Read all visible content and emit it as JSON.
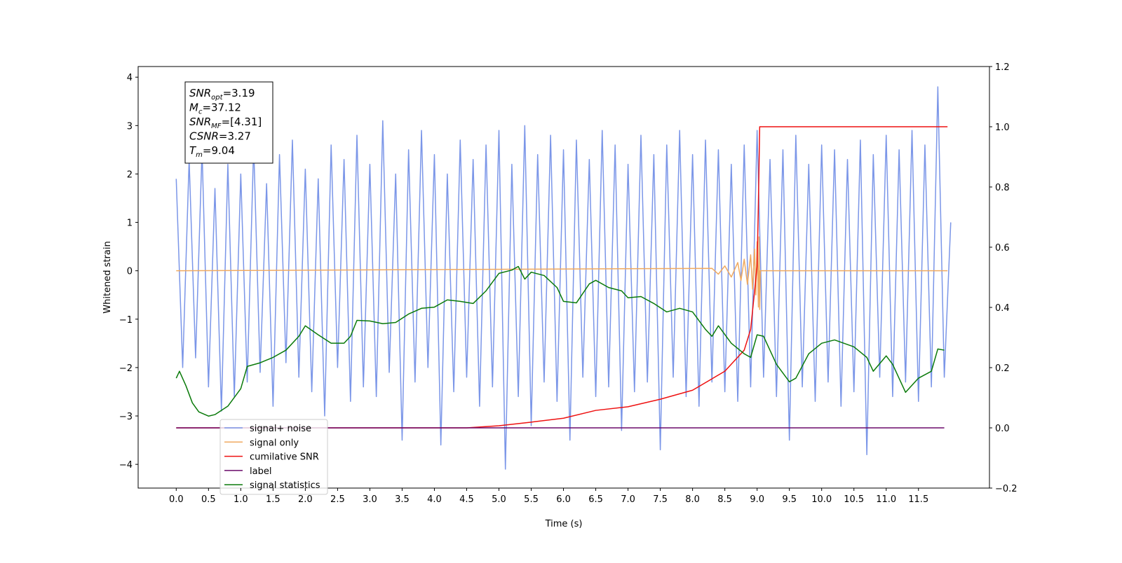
{
  "chart_data": {
    "type": "line",
    "xlabel": "Time (s)",
    "ylabel": "Whitened strain",
    "xlim": [
      -0.59,
      12.6
    ],
    "ylim": [
      -4.49,
      4.22
    ],
    "y2lim": [
      -0.2,
      1.2
    ],
    "xticks": [
      {
        "value": 0,
        "label": "0.0"
      },
      0.5,
      {
        "value": 1,
        "label": "1.0"
      },
      1.5,
      {
        "value": 2,
        "label": "2.0"
      },
      2.5,
      {
        "value": 3,
        "label": "3.0"
      },
      3.5,
      {
        "value": 4,
        "label": "4.0"
      },
      4.5,
      {
        "value": 5,
        "label": "5.0"
      },
      5.5,
      {
        "value": 6,
        "label": "6.0"
      },
      6.5,
      {
        "value": 7,
        "label": "7.0"
      },
      7.5,
      {
        "value": 8,
        "label": "8.0"
      },
      8.5,
      {
        "value": 9,
        "label": "9.0"
      },
      9.5,
      {
        "value": 10,
        "label": "10.0"
      },
      10.5,
      {
        "value": 11,
        "label": "11.0"
      },
      11.5
    ],
    "yticks": [
      {
        "value": -4,
        "label": "−4"
      },
      {
        "value": -3,
        "label": "−3"
      },
      {
        "value": -2,
        "label": "−2"
      },
      {
        "value": -1,
        "label": "−1"
      },
      0,
      1,
      2,
      3,
      4
    ],
    "y2ticks": [
      {
        "value": -0.2,
        "label": "−0.2"
      },
      {
        "value": 0,
        "label": "0.0"
      },
      0.2,
      0.4,
      0.6,
      0.8,
      {
        "value": 1,
        "label": "1.0"
      },
      1.2
    ],
    "legend": "lower left",
    "annotation_box": [
      {
        "var": "SNR",
        "sub": "opt",
        "text": "=3.19"
      },
      {
        "var": "M",
        "sub": "c",
        "text": "=37.12"
      },
      {
        "var": "SNR",
        "sub": "MF",
        "text": "=[4.31]"
      },
      {
        "var": "CSNR",
        "sub": "",
        "text": "=3.27"
      },
      {
        "var": "T",
        "sub": "m",
        "text": "=9.04"
      }
    ],
    "series": [
      {
        "name": "signal+ noise",
        "color": "#7b96e8",
        "axis": "y",
        "x": [
          0,
          0.1,
          0.2,
          0.3,
          0.4,
          0.5,
          0.6,
          0.7,
          0.8,
          0.9,
          1,
          1.1,
          1.2,
          1.3,
          1.4,
          1.5,
          1.6,
          1.7,
          1.8,
          1.9,
          2,
          2.1,
          2.2,
          2.3,
          2.4,
          2.5,
          2.6,
          2.7,
          2.8,
          2.9,
          3,
          3.1,
          3.2,
          3.3,
          3.4,
          3.5,
          3.6,
          3.7,
          3.8,
          3.9,
          4,
          4.1,
          4.2,
          4.3,
          4.4,
          4.5,
          4.6,
          4.7,
          4.8,
          4.9,
          5,
          5.1,
          5.2,
          5.3,
          5.4,
          5.5,
          5.6,
          5.7,
          5.8,
          5.9,
          6,
          6.1,
          6.2,
          6.3,
          6.4,
          6.5,
          6.6,
          6.7,
          6.8,
          6.9,
          7,
          7.1,
          7.2,
          7.3,
          7.4,
          7.5,
          7.6,
          7.7,
          7.8,
          7.9,
          8,
          8.1,
          8.2,
          8.3,
          8.4,
          8.5,
          8.6,
          8.7,
          8.8,
          8.9,
          9,
          9.1,
          9.2,
          9.3,
          9.4,
          9.5,
          9.6,
          9.7,
          9.8,
          9.9,
          10,
          10.1,
          10.2,
          10.3,
          10.4,
          10.5,
          10.6,
          10.7,
          10.8,
          10.9,
          11,
          11.1,
          11.2,
          11.3,
          11.4,
          11.5,
          11.6,
          11.7,
          11.8,
          11.9,
          12
        ],
        "values": [
          1.9,
          -2.0,
          2.3,
          -1.8,
          2.5,
          -2.4,
          1.7,
          -2.9,
          2.2,
          -2.6,
          2.0,
          -2.3,
          2.6,
          -2.1,
          1.8,
          -2.8,
          2.4,
          -1.9,
          2.7,
          -2.2,
          2.1,
          -2.5,
          1.9,
          -3.0,
          2.6,
          -2.0,
          2.3,
          -2.7,
          2.8,
          -2.4,
          2.2,
          -2.6,
          3.1,
          -2.1,
          2.0,
          -3.5,
          2.5,
          -2.3,
          2.9,
          -2.0,
          2.4,
          -3.6,
          2.0,
          -2.5,
          2.7,
          -2.2,
          2.3,
          -2.8,
          2.6,
          -2.4,
          2.9,
          -4.1,
          2.2,
          -2.6,
          3.0,
          -3.2,
          2.4,
          -2.3,
          2.8,
          -2.7,
          2.5,
          -3.5,
          2.7,
          -2.2,
          2.3,
          -2.6,
          2.9,
          -2.4,
          2.6,
          -3.3,
          2.2,
          -2.5,
          2.8,
          -2.3,
          2.4,
          -3.7,
          2.6,
          -2.2,
          2.9,
          -2.6,
          2.4,
          -2.8,
          2.7,
          -2.3,
          2.5,
          -2.5,
          2.2,
          -2.7,
          2.6,
          -2.4,
          2.9,
          -2.2,
          2.3,
          -2.6,
          2.5,
          -3.5,
          2.8,
          -2.4,
          2.2,
          -2.7,
          2.6,
          -2.3,
          2.5,
          -2.8,
          2.3,
          -2.5,
          2.7,
          -3.8,
          2.4,
          -2.2,
          2.8,
          -2.6,
          2.5,
          -2.3,
          2.9,
          -2.7,
          2.6,
          -2.4,
          3.8,
          -2.2,
          1.0
        ]
      },
      {
        "name": "signal only",
        "color": "#f0aa60",
        "axis": "y",
        "x": [
          0,
          8.3,
          8.4,
          8.5,
          8.6,
          8.7,
          8.75,
          8.8,
          8.85,
          8.9,
          8.93,
          8.96,
          8.98,
          9.0,
          9.02,
          9.03,
          9.04,
          9.05,
          11.95
        ],
        "values": [
          0,
          0.05,
          -0.07,
          0.1,
          -0.13,
          0.17,
          -0.2,
          0.24,
          -0.28,
          0.33,
          -0.38,
          0.45,
          -0.5,
          0.6,
          -0.75,
          0.7,
          -0.8,
          0,
          0
        ]
      },
      {
        "name": "cumilative SNR",
        "color": "#ee1111",
        "axis": "y2",
        "x": [
          0,
          4.5,
          5,
          5.5,
          6,
          6.5,
          7,
          7.5,
          8,
          8.5,
          8.8,
          8.9,
          9,
          9.02,
          9.04,
          11.95
        ],
        "values": [
          0,
          0,
          0.007,
          0.019,
          0.032,
          0.058,
          0.07,
          0.095,
          0.125,
          0.188,
          0.258,
          0.327,
          0.536,
          0.745,
          1.0,
          1.0
        ]
      },
      {
        "name": "label",
        "color": "#6a0a6a",
        "axis": "y2",
        "x": [
          0,
          11.9
        ],
        "values": [
          0,
          0
        ]
      },
      {
        "name": "signal statistics",
        "color": "#0a7a0a",
        "axis": "y2",
        "x": [
          0,
          0.05,
          0.15,
          0.25,
          0.35,
          0.5,
          0.6,
          0.8,
          1,
          1.1,
          1.3,
          1.5,
          1.7,
          1.9,
          2,
          2.2,
          2.4,
          2.6,
          2.7,
          2.8,
          3,
          3.2,
          3.4,
          3.6,
          3.8,
          4,
          4.2,
          4.4,
          4.6,
          4.8,
          5,
          5.2,
          5.3,
          5.4,
          5.5,
          5.7,
          5.9,
          6,
          6.2,
          6.4,
          6.5,
          6.7,
          6.9,
          7,
          7.2,
          7.4,
          7.6,
          7.8,
          8,
          8.2,
          8.3,
          8.4,
          8.6,
          8.8,
          8.9,
          9,
          9.1,
          9.3,
          9.5,
          9.6,
          9.8,
          10,
          10.2,
          10.5,
          10.7,
          10.8,
          11,
          11.1,
          11.3,
          11.5,
          11.7,
          11.8,
          11.9
        ],
        "values": [
          0.165,
          0.188,
          0.14,
          0.083,
          0.053,
          0.039,
          0.044,
          0.072,
          0.13,
          0.204,
          0.216,
          0.234,
          0.258,
          0.304,
          0.339,
          0.309,
          0.281,
          0.281,
          0.304,
          0.357,
          0.355,
          0.346,
          0.35,
          0.378,
          0.397,
          0.401,
          0.425,
          0.42,
          0.413,
          0.455,
          0.513,
          0.524,
          0.536,
          0.494,
          0.517,
          0.506,
          0.466,
          0.42,
          0.415,
          0.478,
          0.49,
          0.466,
          0.455,
          0.432,
          0.436,
          0.413,
          0.385,
          0.397,
          0.385,
          0.327,
          0.304,
          0.339,
          0.281,
          0.246,
          0.234,
          0.309,
          0.304,
          0.211,
          0.153,
          0.165,
          0.246,
          0.281,
          0.292,
          0.269,
          0.234,
          0.188,
          0.239,
          0.211,
          0.118,
          0.165,
          0.188,
          0.262,
          0.258
        ]
      }
    ]
  }
}
